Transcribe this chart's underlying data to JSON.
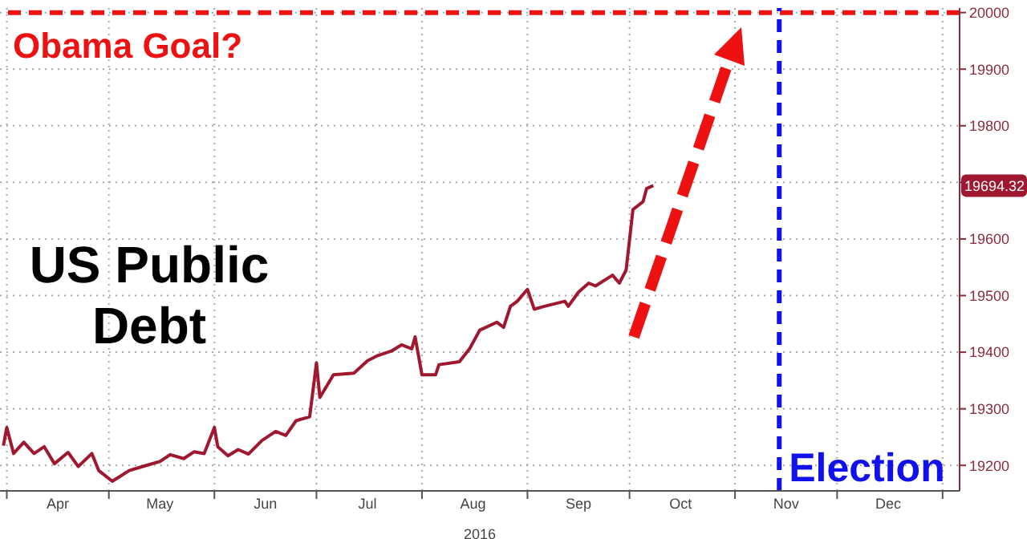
{
  "chart_data": {
    "type": "line",
    "title": "US Public Debt",
    "xlabel": "2016",
    "x": [
      "2016-03-31",
      "2016-04-01",
      "2016-04-03",
      "2016-04-06",
      "2016-04-09",
      "2016-04-12",
      "2016-04-15",
      "2016-04-19",
      "2016-04-22",
      "2016-04-26",
      "2016-04-28",
      "2016-05-02",
      "2016-05-07",
      "2016-05-12",
      "2016-05-16",
      "2016-05-19",
      "2016-05-23",
      "2016-05-26",
      "2016-05-29",
      "2016-06-01",
      "2016-06-02",
      "2016-06-05",
      "2016-06-08",
      "2016-06-11",
      "2016-06-15",
      "2016-06-19",
      "2016-06-22",
      "2016-06-25",
      "2016-06-29",
      "2016-07-01",
      "2016-07-02",
      "2016-07-06",
      "2016-07-12",
      "2016-07-16",
      "2016-07-19",
      "2016-07-23",
      "2016-07-26",
      "2016-07-29",
      "2016-07-30",
      "2016-08-01",
      "2016-08-05",
      "2016-08-06",
      "2016-08-12",
      "2016-08-15",
      "2016-08-18",
      "2016-08-23",
      "2016-08-25",
      "2016-08-27",
      "2016-08-29",
      "2016-09-01",
      "2016-09-03",
      "2016-09-06",
      "2016-09-12",
      "2016-09-13",
      "2016-09-16",
      "2016-09-19",
      "2016-09-21",
      "2016-09-26",
      "2016-09-28",
      "2016-09-30",
      "2016-10-02",
      "2016-10-05",
      "2016-10-06",
      "2016-10-08"
    ],
    "series": [
      {
        "color": "#a0182f",
        "values": [
          19235,
          19267,
          19221,
          19241,
          19221,
          19233,
          19203,
          19223,
          19198,
          19221,
          19191,
          19172,
          19191,
          19200,
          19207,
          19219,
          19212,
          19224,
          19221,
          19267,
          19233,
          19217,
          19228,
          19220,
          19244,
          19260,
          19253,
          19279,
          19286,
          19381,
          19320,
          19360,
          19363,
          19385,
          19394,
          19402,
          19413,
          19406,
          19427,
          19360,
          19360,
          19378,
          19383,
          19406,
          19439,
          19453,
          19444,
          19481,
          19490,
          19511,
          19476,
          19481,
          19490,
          19481,
          19506,
          19522,
          19517,
          19536,
          19522,
          19545,
          19652,
          19666,
          19689,
          19694.32
        ]
      }
    ],
    "annotations": [
      "19694.32"
    ],
    "xlim": [
      "2016-03-30",
      "2017-01-06"
    ],
    "xticks": [
      {
        "value": "2016-04-01",
        "label": null
      },
      {
        "value": "2016-04-16",
        "label": "Apr"
      },
      {
        "value": "2016-05-01",
        "label": null
      },
      {
        "value": "2016-05-16",
        "label": "May"
      },
      {
        "value": "2016-06-01",
        "label": null
      },
      {
        "value": "2016-06-16",
        "label": "Jun"
      },
      {
        "value": "2016-07-01",
        "label": null
      },
      {
        "value": "2016-07-16",
        "label": "Jul"
      },
      {
        "value": "2016-08-01",
        "label": null
      },
      {
        "value": "2016-08-16",
        "label": "Aug"
      },
      {
        "value": "2016-09-01",
        "label": null
      },
      {
        "value": "2016-09-16",
        "label": "Sep"
      },
      {
        "value": "2016-10-01",
        "label": null
      },
      {
        "value": "2016-10-16",
        "label": "Oct"
      },
      {
        "value": "2016-11-01",
        "label": null
      },
      {
        "value": "2016-11-16",
        "label": "Nov"
      },
      {
        "value": "2016-12-01",
        "label": null
      },
      {
        "value": "2016-12-16",
        "label": "Dec"
      },
      {
        "value": "2017-01-01",
        "label": null
      }
    ],
    "ylim": [
      19155,
      20008
    ],
    "yticks": [
      19200,
      19300,
      19400,
      19500,
      19600,
      {
        "value": 19700,
        "label": null
      },
      19800,
      19900,
      20000
    ],
    "ref_lines": [
      {
        "axis": "y",
        "value": 20000,
        "label": "Obama Goal?",
        "color": "#ee1111",
        "line_style": "dashed"
      },
      {
        "axis": "x",
        "value": "2016-11-14",
        "label": "Election",
        "color": "#1111ee",
        "line_style": "dashed"
      }
    ],
    "grid": true
  }
}
